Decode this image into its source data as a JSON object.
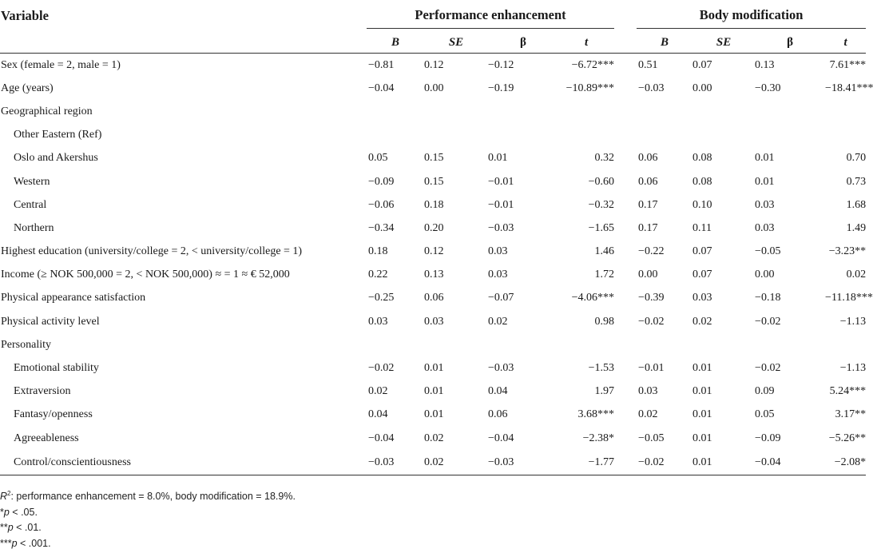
{
  "table": {
    "var_header": "Variable",
    "group1": "Performance enhancement",
    "group2": "Body modification",
    "cols": [
      "B",
      "SE",
      "β",
      "t"
    ],
    "rows": [
      {
        "label": "Sex (female = 2, male = 1)",
        "indent": false,
        "pe": [
          "−0.81",
          "0.12",
          "−0.12",
          "−6.72***"
        ],
        "bm": [
          "0.51",
          "0.07",
          "0.13",
          "7.61***"
        ]
      },
      {
        "label": "Age (years)",
        "indent": false,
        "pe": [
          "−0.04",
          "0.00",
          "−0.19",
          "−10.89***"
        ],
        "bm": [
          "−0.03",
          "0.00",
          "−0.30",
          "−18.41***"
        ]
      },
      {
        "label": "Geographical region",
        "indent": false,
        "pe": [
          "",
          "",
          "",
          ""
        ],
        "bm": [
          "",
          "",
          "",
          ""
        ]
      },
      {
        "label": "Other Eastern (Ref)",
        "indent": true,
        "pe": [
          "",
          "",
          "",
          ""
        ],
        "bm": [
          "",
          "",
          "",
          ""
        ]
      },
      {
        "label": "Oslo and Akershus",
        "indent": true,
        "pe": [
          "0.05",
          "0.15",
          "0.01",
          "0.32"
        ],
        "bm": [
          "0.06",
          "0.08",
          "0.01",
          "0.70"
        ]
      },
      {
        "label": "Western",
        "indent": true,
        "pe": [
          "−0.09",
          "0.15",
          "−0.01",
          "−0.60"
        ],
        "bm": [
          "0.06",
          "0.08",
          "0.01",
          "0.73"
        ]
      },
      {
        "label": "Central",
        "indent": true,
        "pe": [
          "−0.06",
          "0.18",
          "−0.01",
          "−0.32"
        ],
        "bm": [
          "0.17",
          "0.10",
          "0.03",
          "1.68"
        ]
      },
      {
        "label": "Northern",
        "indent": true,
        "pe": [
          "−0.34",
          "0.20",
          "−0.03",
          "−1.65"
        ],
        "bm": [
          "0.17",
          "0.11",
          "0.03",
          "1.49"
        ]
      },
      {
        "label": "Highest education (university/college = 2, < university/college = 1)",
        "indent": false,
        "pe": [
          "0.18",
          "0.12",
          "0.03",
          "1.46"
        ],
        "bm": [
          "−0.22",
          "0.07",
          "−0.05",
          "−3.23**"
        ]
      },
      {
        "label": "Income (≥ NOK 500,000 = 2, < NOK 500,000) ≈ = 1 ≈ € 52,000",
        "indent": false,
        "pe": [
          "0.22",
          "0.13",
          "0.03",
          "1.72"
        ],
        "bm": [
          "0.00",
          "0.07",
          "0.00",
          "0.02"
        ]
      },
      {
        "label": "Physical appearance satisfaction",
        "indent": false,
        "pe": [
          "−0.25",
          "0.06",
          "−0.07",
          "−4.06***"
        ],
        "bm": [
          "−0.39",
          "0.03",
          "−0.18",
          "−11.18***"
        ]
      },
      {
        "label": "Physical activity level",
        "indent": false,
        "pe": [
          "0.03",
          "0.03",
          "0.02",
          "0.98"
        ],
        "bm": [
          "−0.02",
          "0.02",
          "−0.02",
          "−1.13"
        ]
      },
      {
        "label": "Personality",
        "indent": false,
        "pe": [
          "",
          "",
          "",
          ""
        ],
        "bm": [
          "",
          "",
          "",
          ""
        ]
      },
      {
        "label": "Emotional stability",
        "indent": true,
        "pe": [
          "−0.02",
          "0.01",
          "−0.03",
          "−1.53"
        ],
        "bm": [
          "−0.01",
          "0.01",
          "−0.02",
          "−1.13"
        ]
      },
      {
        "label": "Extraversion",
        "indent": true,
        "pe": [
          "0.02",
          "0.01",
          "0.04",
          "1.97"
        ],
        "bm": [
          "0.03",
          "0.01",
          "0.09",
          "5.24***"
        ]
      },
      {
        "label": "Fantasy/openness",
        "indent": true,
        "pe": [
          "0.04",
          "0.01",
          "0.06",
          "3.68***"
        ],
        "bm": [
          "0.02",
          "0.01",
          "0.05",
          "3.17**"
        ]
      },
      {
        "label": "Agreeableness",
        "indent": true,
        "pe": [
          "−0.04",
          "0.02",
          "−0.04",
          "−2.38*"
        ],
        "bm": [
          "−0.05",
          "0.01",
          "−0.09",
          "−5.26**"
        ]
      },
      {
        "label": "Control/conscientiousness",
        "indent": true,
        "pe": [
          "−0.03",
          "0.02",
          "−0.03",
          "−1.77"
        ],
        "bm": [
          "−0.02",
          "0.01",
          "−0.04",
          "−2.08*"
        ]
      }
    ]
  },
  "notes": {
    "r2_symbol": "R",
    "r2_sup": "2",
    "r2_text": ": performance enhancement = 8.0%, body modification = 18.9%.",
    "n1_stars": "*",
    "n1_p": "p",
    "n1_rest": " < .05.",
    "n2_stars": "**",
    "n2_p": "p",
    "n2_rest": " < .01.",
    "n3_stars": "***",
    "n3_p": "p",
    "n3_rest": " < .001."
  }
}
